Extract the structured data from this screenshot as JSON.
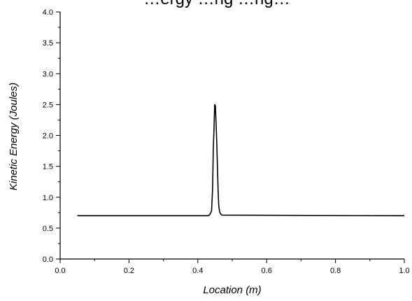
{
  "chart_data": {
    "type": "line",
    "title": "…ergy …ng …ng…",
    "xlabel": "Location (m)",
    "ylabel": "Kinetic Energy (Joules)",
    "xlim": [
      0.0,
      1.0
    ],
    "ylim": [
      0.0,
      4.0
    ],
    "x_ticks": [
      "0.0",
      "0.2",
      "0.4",
      "0.6",
      "0.8",
      "1.0"
    ],
    "y_ticks": [
      "0.0",
      "0.5",
      "1.0",
      "1.5",
      "2.0",
      "2.5",
      "3.0",
      "3.5",
      "4.0"
    ],
    "grid": false,
    "series": [
      {
        "x": [
          0.05,
          0.43,
          0.435,
          0.44,
          0.443,
          0.445,
          0.447,
          0.449,
          0.451,
          0.453,
          0.455,
          0.457,
          0.459,
          0.461,
          0.463,
          0.465,
          0.47,
          1.0
        ],
        "y": [
          0.7,
          0.7,
          0.72,
          0.78,
          1.15,
          1.8,
          2.1,
          2.5,
          2.48,
          2.2,
          1.9,
          1.5,
          1.1,
          0.85,
          0.78,
          0.74,
          0.71,
          0.7
        ]
      }
    ]
  }
}
